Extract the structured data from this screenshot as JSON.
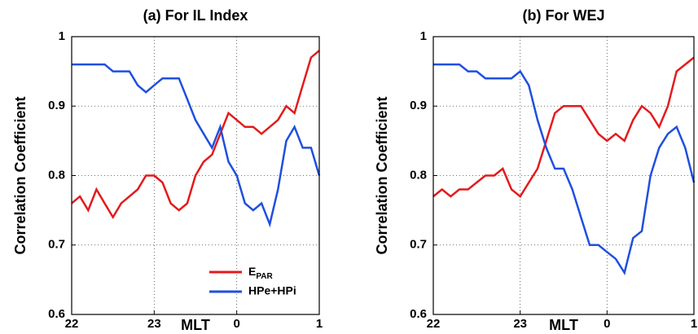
{
  "chart_data": [
    {
      "type": "line",
      "title": "(a) For IL Index",
      "xlabel": "MLT",
      "ylabel": "Correlation Coefficient",
      "x": [
        22.0,
        22.1,
        22.2,
        22.3,
        22.4,
        22.5,
        22.6,
        22.7,
        22.8,
        22.9,
        23.0,
        23.1,
        23.2,
        23.3,
        23.4,
        23.5,
        23.6,
        23.7,
        23.8,
        23.9,
        24.0,
        24.1,
        24.2,
        24.3,
        24.4,
        24.5,
        24.6,
        24.7,
        24.8,
        24.9,
        25.0
      ],
      "xlim": [
        22,
        25
      ],
      "xticks": [
        22,
        23,
        {
          "value": 24,
          "label": "0"
        },
        {
          "value": 25,
          "label": "1"
        }
      ],
      "ylim": [
        0.6,
        1
      ],
      "yticks": [
        0.6,
        0.7,
        0.8,
        0.9,
        1
      ],
      "grid": true,
      "legend": "lower right",
      "series": [
        {
          "name": "EPAR",
          "color": "#e41a1c",
          "values": [
            0.76,
            0.77,
            0.75,
            0.78,
            0.76,
            0.74,
            0.76,
            0.77,
            0.78,
            0.8,
            0.8,
            0.79,
            0.76,
            0.75,
            0.76,
            0.8,
            0.82,
            0.83,
            0.86,
            0.89,
            0.88,
            0.87,
            0.87,
            0.86,
            0.87,
            0.88,
            0.9,
            0.89,
            0.93,
            0.97,
            0.98
          ]
        },
        {
          "name": "HPe+HPi",
          "color": "#1f4fe0",
          "values": [
            0.96,
            0.96,
            0.96,
            0.96,
            0.96,
            0.95,
            0.95,
            0.95,
            0.93,
            0.92,
            0.93,
            0.94,
            0.94,
            0.94,
            0.91,
            0.88,
            0.86,
            0.84,
            0.87,
            0.82,
            0.8,
            0.76,
            0.75,
            0.76,
            0.73,
            0.78,
            0.85,
            0.87,
            0.84,
            0.84,
            0.8
          ]
        }
      ]
    },
    {
      "type": "line",
      "title": "(b) For WEJ",
      "xlabel": "MLT",
      "ylabel": "Correlation Coefficient",
      "x": [
        22.0,
        22.1,
        22.2,
        22.3,
        22.4,
        22.5,
        22.6,
        22.7,
        22.8,
        22.9,
        23.0,
        23.1,
        23.2,
        23.3,
        23.4,
        23.5,
        23.6,
        23.7,
        23.8,
        23.9,
        24.0,
        24.1,
        24.2,
        24.3,
        24.4,
        24.5,
        24.6,
        24.7,
        24.8,
        24.9,
        25.0
      ],
      "xlim": [
        22,
        25
      ],
      "xticks": [
        22,
        23,
        {
          "value": 24,
          "label": "0"
        },
        {
          "value": 25,
          "label": "1"
        }
      ],
      "ylim": [
        0.6,
        1
      ],
      "yticks": [
        0.6,
        0.7,
        0.8,
        0.9,
        1
      ],
      "grid": true,
      "series": [
        {
          "color": "#e41a1c",
          "values": [
            0.77,
            0.78,
            0.77,
            0.78,
            0.78,
            0.79,
            0.8,
            0.8,
            0.81,
            0.78,
            0.77,
            0.79,
            0.81,
            0.85,
            0.89,
            0.9,
            0.9,
            0.9,
            0.88,
            0.86,
            0.85,
            0.86,
            0.85,
            0.88,
            0.9,
            0.89,
            0.87,
            0.9,
            0.95,
            0.96,
            0.97
          ]
        },
        {
          "color": "#1f4fe0",
          "values": [
            0.96,
            0.96,
            0.96,
            0.96,
            0.95,
            0.95,
            0.94,
            0.94,
            0.94,
            0.94,
            0.95,
            0.93,
            0.88,
            0.84,
            0.81,
            0.81,
            0.78,
            0.74,
            0.7,
            0.7,
            0.69,
            0.68,
            0.66,
            0.71,
            0.72,
            0.8,
            0.84,
            0.86,
            0.87,
            0.84,
            0.79
          ]
        }
      ]
    }
  ]
}
